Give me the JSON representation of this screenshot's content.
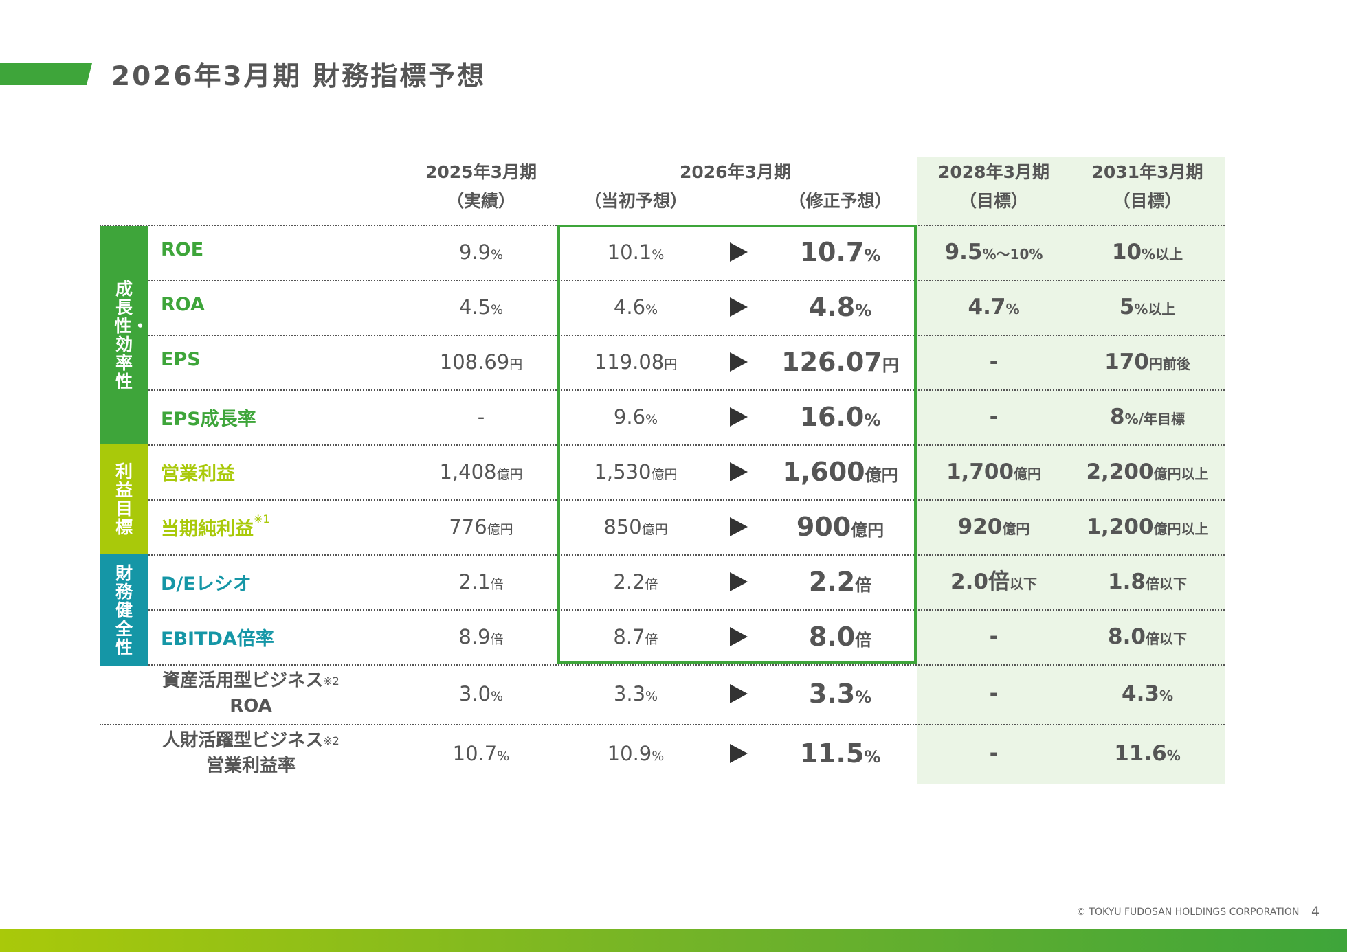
{
  "title": "2026年3月期 財務指標予想",
  "headers": {
    "fy2025": "2025年3月期",
    "fy2025_sub": "（実績）",
    "fy2026": "2026年3月期",
    "fy2026_initial": "（当初予想）",
    "fy2026_revised": "（修正予想）",
    "fy2028": "2028年3月期",
    "fy2028_sub": "（目標）",
    "fy2031": "2031年3月期",
    "fy2031_sub": "（目標）"
  },
  "categories": {
    "growth": "成長性・効率性",
    "profit": "利益目標",
    "financial": "財務健全性"
  },
  "colors": {
    "growth": "#3ea53a",
    "profit": "#a9c90a",
    "financial": "#1596a6",
    "accent": "#3ea53a",
    "target_bg": "#ebf5e6"
  },
  "rows": [
    {
      "label": "ROE",
      "fy2025_v": "9.9",
      "fy2025_u": "%",
      "init_v": "10.1",
      "init_u": "%",
      "rev_v": "10.7",
      "rev_u": "%",
      "fy2028_v": "9.5",
      "fy2028_u": "%～10%",
      "fy2031_v": "10",
      "fy2031_u": "%以上"
    },
    {
      "label": "ROA",
      "fy2025_v": "4.5",
      "fy2025_u": "%",
      "init_v": "4.6",
      "init_u": "%",
      "rev_v": "4.8",
      "rev_u": "%",
      "fy2028_v": "4.7",
      "fy2028_u": "%",
      "fy2031_v": "5",
      "fy2031_u": "%以上"
    },
    {
      "label": "EPS",
      "fy2025_v": "108.69",
      "fy2025_u": "円",
      "init_v": "119.08",
      "init_u": "円",
      "rev_v": "126.07",
      "rev_u": "円",
      "fy2028_v": "-",
      "fy2028_u": "",
      "fy2031_v": "170",
      "fy2031_u": "円前後"
    },
    {
      "label": "EPS成長率",
      "fy2025_v": "-",
      "fy2025_u": "",
      "init_v": "9.6",
      "init_u": "%",
      "rev_v": "16.0",
      "rev_u": "%",
      "fy2028_v": "-",
      "fy2028_u": "",
      "fy2031_v": "8",
      "fy2031_u": "%/年目標"
    },
    {
      "label": "営業利益",
      "fy2025_v": "1,408",
      "fy2025_u": "億円",
      "init_v": "1,530",
      "init_u": "億円",
      "rev_v": "1,600",
      "rev_u": "億円",
      "fy2028_v": "1,700",
      "fy2028_u": "億円",
      "fy2031_v": "2,200",
      "fy2031_u": "億円以上"
    },
    {
      "label": "当期純利益",
      "note": "※1",
      "fy2025_v": "776",
      "fy2025_u": "億円",
      "init_v": "850",
      "init_u": "億円",
      "rev_v": "900",
      "rev_u": "億円",
      "fy2028_v": "920",
      "fy2028_u": "億円",
      "fy2031_v": "1,200",
      "fy2031_u": "億円以上"
    },
    {
      "label": "D/Eレシオ",
      "fy2025_v": "2.1",
      "fy2025_u": "倍",
      "init_v": "2.2",
      "init_u": "倍",
      "rev_v": "2.2",
      "rev_u": "倍",
      "fy2028_v": "2.0倍",
      "fy2028_u": "以下",
      "fy2031_v": "1.8",
      "fy2031_u": "倍以下"
    },
    {
      "label": "EBITDA倍率",
      "fy2025_v": "8.9",
      "fy2025_u": "倍",
      "init_v": "8.7",
      "init_u": "倍",
      "rev_v": "8.0",
      "rev_u": "倍",
      "fy2028_v": "-",
      "fy2028_u": "",
      "fy2031_v": "8.0",
      "fy2031_u": "倍以下"
    },
    {
      "label1": "資産活用型ビジネス",
      "note": "※2",
      "label2": "ROA",
      "fy2025_v": "3.0",
      "fy2025_u": "%",
      "init_v": "3.3",
      "init_u": "%",
      "rev_v": "3.3",
      "rev_u": "%",
      "fy2028_v": "-",
      "fy2028_u": "",
      "fy2031_v": "4.3",
      "fy2031_u": "%"
    },
    {
      "label1": "人財活躍型ビジネス",
      "note": "※2",
      "label2": "営業利益率",
      "fy2025_v": "10.7",
      "fy2025_u": "%",
      "init_v": "10.9",
      "init_u": "%",
      "rev_v": "11.5",
      "rev_u": "%",
      "fy2028_v": "-",
      "fy2028_u": "",
      "fy2031_v": "11.6",
      "fy2031_u": "%"
    }
  ],
  "footer": {
    "copyright": "© TOKYU FUDOSAN HOLDINGS CORPORATION",
    "page": "4"
  }
}
